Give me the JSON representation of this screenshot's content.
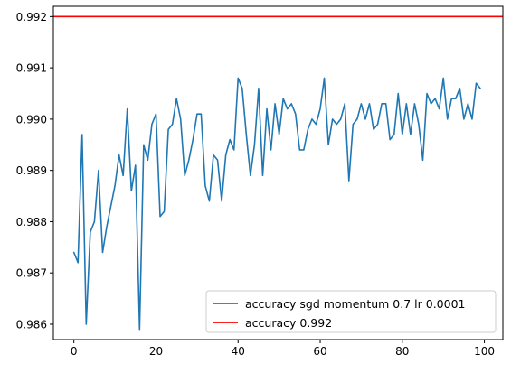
{
  "chart_data": {
    "type": "line",
    "title": "",
    "xlabel": "",
    "ylabel": "",
    "xlim": [
      -5,
      104.5
    ],
    "ylim": [
      0.9857,
      0.9922
    ],
    "xticks": [
      0,
      20,
      40,
      60,
      80,
      100
    ],
    "yticks": [
      0.986,
      0.987,
      0.988,
      0.989,
      0.99,
      0.991,
      0.992
    ],
    "ytick_labels": [
      "0.986",
      "0.987",
      "0.988",
      "0.989",
      "0.990",
      "0.991",
      "0.992"
    ],
    "grid": false,
    "legend_position": "lower right",
    "series": [
      {
        "name": "accuracy sgd momentum 0.7 lr 0.0001",
        "color": "#1f77b4",
        "x": [
          0,
          1,
          2,
          3,
          4,
          5,
          6,
          7,
          8,
          9,
          10,
          11,
          12,
          13,
          14,
          15,
          16,
          17,
          18,
          19,
          20,
          21,
          22,
          23,
          24,
          25,
          26,
          27,
          28,
          29,
          30,
          31,
          32,
          33,
          34,
          35,
          36,
          37,
          38,
          39,
          40,
          41,
          42,
          43,
          44,
          45,
          46,
          47,
          48,
          49,
          50,
          51,
          52,
          53,
          54,
          55,
          56,
          57,
          58,
          59,
          60,
          61,
          62,
          63,
          64,
          65,
          66,
          67,
          68,
          69,
          70,
          71,
          72,
          73,
          74,
          75,
          76,
          77,
          78,
          79,
          80,
          81,
          82,
          83,
          84,
          85,
          86,
          87,
          88,
          89,
          90,
          91,
          92,
          93,
          94,
          95,
          96,
          97,
          98,
          99
        ],
        "values": [
          0.9874,
          0.9872,
          0.9897,
          0.986,
          0.9878,
          0.988,
          0.989,
          0.9874,
          0.9879,
          0.9883,
          0.9887,
          0.9893,
          0.9889,
          0.9902,
          0.9886,
          0.9891,
          0.9859,
          0.9895,
          0.9892,
          0.9899,
          0.9901,
          0.9881,
          0.9882,
          0.9898,
          0.9899,
          0.9904,
          0.99,
          0.9889,
          0.9892,
          0.9896,
          0.9901,
          0.9901,
          0.9887,
          0.9884,
          0.9893,
          0.9892,
          0.9884,
          0.9893,
          0.9896,
          0.9894,
          0.9908,
          0.9906,
          0.9897,
          0.9889,
          0.9895,
          0.9906,
          0.9889,
          0.9902,
          0.9894,
          0.9903,
          0.9897,
          0.9904,
          0.9902,
          0.9903,
          0.9901,
          0.9894,
          0.9894,
          0.9898,
          0.99,
          0.9899,
          0.9902,
          0.9908,
          0.9895,
          0.99,
          0.9899,
          0.99,
          0.9903,
          0.9888,
          0.9899,
          0.99,
          0.9903,
          0.99,
          0.9903,
          0.9898,
          0.9899,
          0.9903,
          0.9903,
          0.9896,
          0.9897,
          0.9905,
          0.9897,
          0.9903,
          0.9897,
          0.9903,
          0.9899,
          0.9892,
          0.9905,
          0.9903,
          0.9904,
          0.9902,
          0.9908,
          0.99,
          0.9904,
          0.9904,
          0.9906,
          0.99,
          0.9903,
          0.99,
          0.9907,
          0.9906
        ]
      },
      {
        "name": "accuracy 0.992",
        "color": "#ff0000",
        "kind": "hline",
        "value": 0.992
      }
    ]
  }
}
